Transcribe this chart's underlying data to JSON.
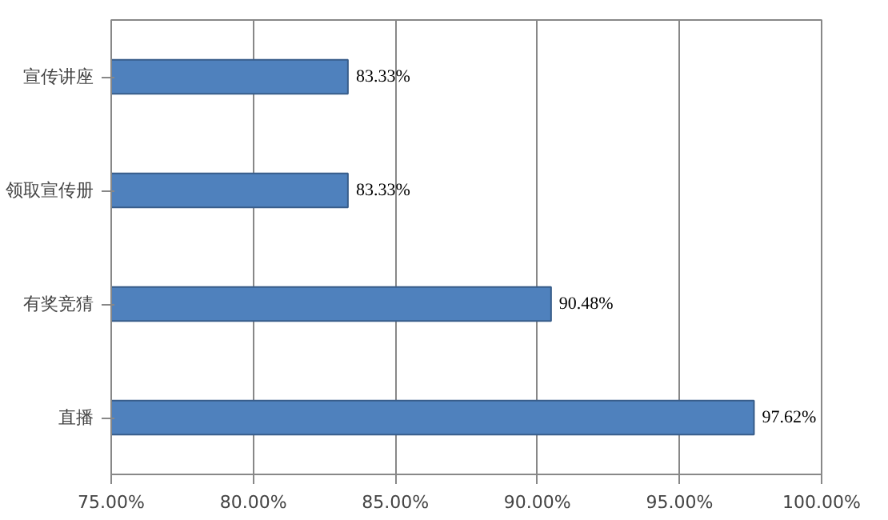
{
  "chart_data": {
    "type": "bar",
    "orientation": "horizontal",
    "categories": [
      "宣传讲座",
      "领取宣传册",
      "有奖竞猜",
      "直播"
    ],
    "values": [
      83.33,
      83.33,
      90.48,
      97.62
    ],
    "color": "#4f81bd",
    "value_labels": [
      "83.33%",
      "83.33%",
      "90.48%",
      "97.62%"
    ],
    "xlim": [
      75,
      100
    ],
    "xticks": [
      {
        "value": 75,
        "label": "75.00%"
      },
      {
        "value": 80,
        "label": "80.00%"
      },
      {
        "value": 85,
        "label": "85.00%"
      },
      {
        "value": 90,
        "label": "90.00%"
      },
      {
        "value": 95,
        "label": "95.00%"
      },
      {
        "value": 100,
        "label": "100.00%"
      }
    ],
    "grid": "x"
  }
}
